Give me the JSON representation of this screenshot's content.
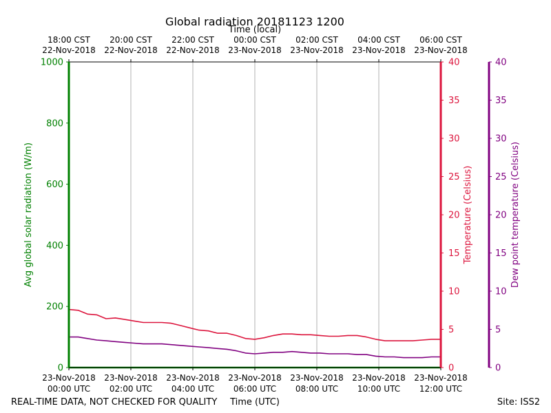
{
  "chart_data": {
    "type": "line",
    "title": "Global radiation 20181123 1200",
    "x_top_label": "Time (local)",
    "xlabel": "Time (UTC)",
    "x_ticks_utc": [
      {
        "line1": "23-Nov-2018",
        "line2": "00:00 UTC"
      },
      {
        "line1": "23-Nov-2018",
        "line2": "02:00 UTC"
      },
      {
        "line1": "23-Nov-2018",
        "line2": "04:00 UTC"
      },
      {
        "line1": "23-Nov-2018",
        "line2": "06:00 UTC"
      },
      {
        "line1": "23-Nov-2018",
        "line2": "08:00 UTC"
      },
      {
        "line1": "23-Nov-2018",
        "line2": "10:00 UTC"
      },
      {
        "line1": "23-Nov-2018",
        "line2": "12:00 UTC"
      }
    ],
    "x_ticks_local": [
      {
        "line1": "18:00 CST",
        "line2": "22-Nov-2018"
      },
      {
        "line1": "20:00 CST",
        "line2": "22-Nov-2018"
      },
      {
        "line1": "22:00 CST",
        "line2": "22-Nov-2018"
      },
      {
        "line1": "00:00 CST",
        "line2": "23-Nov-2018"
      },
      {
        "line1": "02:00 CST",
        "line2": "23-Nov-2018"
      },
      {
        "line1": "04:00 CST",
        "line2": "23-Nov-2018"
      },
      {
        "line1": "06:00 CST",
        "line2": "23-Nov-2018"
      }
    ],
    "xlim_hours": [
      0,
      12
    ],
    "axes": {
      "radiation": {
        "label": "Avg global solar radiation (W/m)",
        "ylim": [
          0,
          1000
        ],
        "ticks": [
          0,
          200,
          400,
          600,
          800,
          1000
        ],
        "color": "#008000"
      },
      "temperature": {
        "label": "Temperature (Celsius)",
        "ylim": [
          0,
          40
        ],
        "ticks": [
          0,
          5,
          10,
          15,
          20,
          25,
          30,
          35,
          40
        ],
        "color": "#dc143c"
      },
      "dewpoint": {
        "label": "Dew point temperature (Celsius)",
        "ylim": [
          0,
          40
        ],
        "ticks": [
          0,
          5,
          10,
          15,
          20,
          25,
          30,
          35,
          40
        ],
        "color": "#800080"
      }
    },
    "series": [
      {
        "name": "Temperature",
        "axis": "temperature",
        "color": "#dc143c",
        "x": [
          0,
          0.3,
          0.6,
          0.9,
          1.2,
          1.5,
          1.8,
          2.1,
          2.4,
          2.7,
          3.0,
          3.3,
          3.6,
          3.9,
          4.2,
          4.5,
          4.8,
          5.1,
          5.4,
          5.7,
          6.0,
          6.3,
          6.6,
          6.9,
          7.2,
          7.5,
          7.8,
          8.1,
          8.4,
          8.7,
          9.0,
          9.3,
          9.6,
          9.9,
          10.2,
          10.5,
          10.8,
          11.1,
          11.4,
          11.7,
          12.0
        ],
        "y": [
          7.6,
          7.5,
          7.0,
          6.9,
          6.4,
          6.5,
          6.3,
          6.1,
          5.9,
          5.9,
          5.9,
          5.8,
          5.5,
          5.2,
          4.9,
          4.8,
          4.5,
          4.5,
          4.2,
          3.8,
          3.7,
          3.9,
          4.2,
          4.4,
          4.4,
          4.3,
          4.3,
          4.2,
          4.1,
          4.1,
          4.2,
          4.2,
          4.0,
          3.7,
          3.5,
          3.5,
          3.5,
          3.5,
          3.6,
          3.7,
          3.7
        ]
      },
      {
        "name": "Dew point",
        "axis": "dewpoint",
        "color": "#800080",
        "x": [
          0,
          0.3,
          0.6,
          0.9,
          1.2,
          1.5,
          1.8,
          2.1,
          2.4,
          2.7,
          3.0,
          3.3,
          3.6,
          3.9,
          4.2,
          4.5,
          4.8,
          5.1,
          5.4,
          5.7,
          6.0,
          6.3,
          6.6,
          6.9,
          7.2,
          7.5,
          7.8,
          8.1,
          8.4,
          8.7,
          9.0,
          9.3,
          9.6,
          9.9,
          10.2,
          10.5,
          10.8,
          11.1,
          11.4,
          11.7,
          12.0
        ],
        "y": [
          4.0,
          4.0,
          3.8,
          3.6,
          3.5,
          3.4,
          3.3,
          3.2,
          3.1,
          3.1,
          3.1,
          3.0,
          2.9,
          2.8,
          2.7,
          2.6,
          2.5,
          2.4,
          2.2,
          1.9,
          1.8,
          1.9,
          2.0,
          2.0,
          2.1,
          2.0,
          1.9,
          1.9,
          1.8,
          1.8,
          1.8,
          1.7,
          1.7,
          1.5,
          1.4,
          1.4,
          1.3,
          1.3,
          1.3,
          1.4,
          1.4
        ]
      }
    ]
  },
  "footer": {
    "left": "REAL-TIME DATA, NOT CHECKED FOR QUALITY",
    "right": "Site: ISS2"
  }
}
